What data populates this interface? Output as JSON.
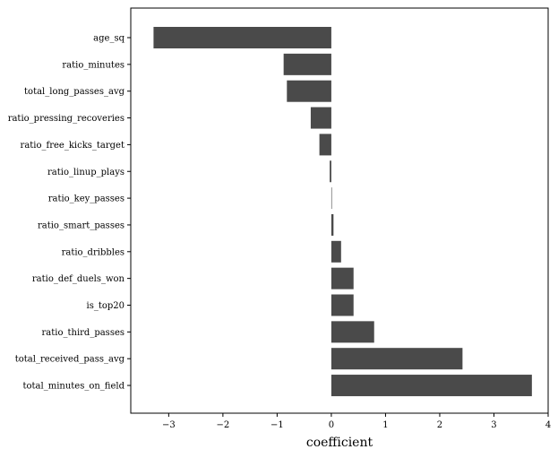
{
  "chart_data": {
    "type": "bar",
    "orientation": "horizontal",
    "title": "",
    "xlabel": "coefficient",
    "ylabel": "",
    "xlim": [
      -3.7,
      4.0
    ],
    "xticks": [
      -3,
      -2,
      -1,
      0,
      1,
      2,
      3,
      4
    ],
    "grid": false,
    "bar_color": "#4a4a4a",
    "categories": [
      "age_sq",
      "ratio_minutes",
      "total_long_passes_avg",
      "ratio_pressing_recoveries",
      "ratio_free_kicks_target",
      "ratio_linup_plays",
      "ratio_key_passes",
      "ratio_smart_passes",
      "ratio_dribbles",
      "ratio_def_duels_won",
      "is_top20",
      "ratio_third_passes",
      "total_received_pass_avg",
      "total_minutes_on_field"
    ],
    "values": [
      -3.28,
      -0.88,
      -0.82,
      -0.38,
      -0.22,
      -0.03,
      0.01,
      0.04,
      0.18,
      0.41,
      0.41,
      0.79,
      2.42,
      3.7
    ]
  }
}
